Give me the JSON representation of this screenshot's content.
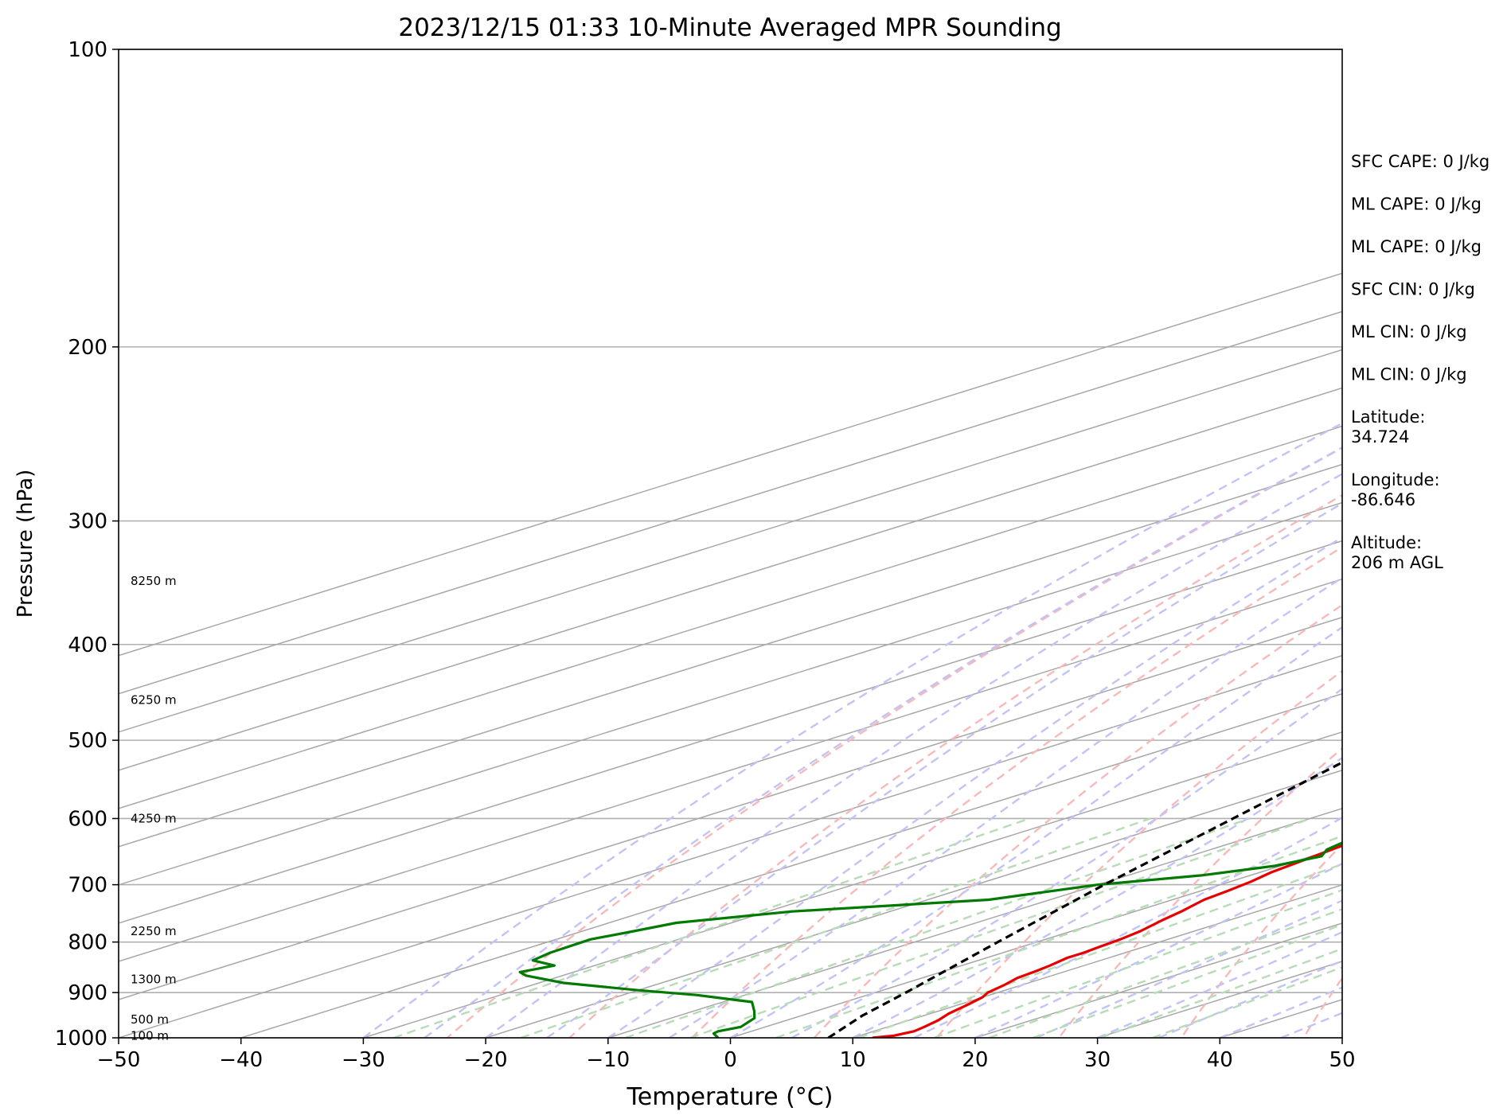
{
  "chart_data": {
    "type": "line",
    "chart_kind": "skew-T log-P",
    "title": "2023/12/15 01:33 10-Minute Averaged MPR Sounding",
    "xlabel": "Temperature (°C)",
    "ylabel": "Pressure (hPa)",
    "xlim": [
      -50,
      50
    ],
    "ylim": [
      1000,
      100
    ],
    "y_scale": "log",
    "x_ticks": [
      "−50",
      "−40",
      "−30",
      "−20",
      "−10",
      "0",
      "10",
      "20",
      "30",
      "40",
      "50"
    ],
    "y_ticks": [
      "100",
      "200",
      "300",
      "400",
      "500",
      "600",
      "700",
      "800",
      "900",
      "1000"
    ],
    "grid": "horizontal isobars plus skewed isotherms, dry adiabats, moist adiabats and mixing-ratio lines",
    "background_lines": {
      "isotherms": {
        "color": "#a8a8a8",
        "values": [
          -150,
          -140,
          -130,
          -120,
          -110,
          -100,
          -90,
          -80,
          -70,
          -60,
          -50,
          -40,
          -30,
          -20,
          -10,
          0,
          10,
          20,
          30,
          40,
          50
        ]
      },
      "dry_adiabats": {
        "color": "#f7b9b9",
        "theta_K": [
          250,
          260,
          270,
          280,
          290,
          300,
          310,
          320,
          330,
          340,
          350,
          360,
          370,
          380,
          390,
          400,
          410,
          420,
          430,
          440,
          450
        ]
      },
      "moist_adiabats": {
        "color": "#c3c3f6",
        "surface_temp_C": [
          -30,
          -25,
          -20,
          -15,
          -10,
          -5,
          0,
          5,
          10,
          15,
          20,
          25,
          30,
          35,
          40,
          45
        ]
      },
      "mixing_ratio": {
        "color": "#b8dbb8",
        "values_g_per_kg": [
          0.4,
          1,
          2,
          3,
          5,
          8,
          12,
          16,
          20,
          28,
          36
        ],
        "top_pressure": 600
      }
    },
    "height_labels": [
      "8250 m",
      "6250 m",
      "4250 m",
      "2250 m",
      "1300 m",
      "500 m",
      "100 m"
    ],
    "height_label_pressures": [
      345,
      455,
      600,
      780,
      873,
      958,
      995
    ],
    "series": [
      {
        "color": "#e60000",
        "points": [
          [
            1000,
            11.6
          ],
          [
            995,
            12.8
          ],
          [
            985,
            13.3
          ],
          [
            975,
            13.0
          ],
          [
            960,
            12.4
          ],
          [
            945,
            11.5
          ],
          [
            925,
            10.7
          ],
          [
            910,
            10.0
          ],
          [
            900,
            9.2
          ],
          [
            885,
            8.6
          ],
          [
            870,
            7.8
          ],
          [
            855,
            7.5
          ],
          [
            845,
            7.2
          ],
          [
            830,
            6.6
          ],
          [
            820,
            6.6
          ],
          [
            810,
            6.4
          ],
          [
            795,
            6.1
          ],
          [
            780,
            5.6
          ],
          [
            760,
            4.5
          ],
          [
            745,
            3.8
          ],
          [
            725,
            2.6
          ],
          [
            710,
            2.2
          ],
          [
            695,
            1.7
          ],
          [
            680,
            0.9
          ],
          [
            665,
            0.5
          ],
          [
            645,
            -0.1
          ],
          [
            625,
            -0.8
          ],
          [
            610,
            -1.3
          ],
          [
            590,
            -2.0
          ],
          [
            570,
            -2.9
          ],
          [
            555,
            -3.6
          ],
          [
            540,
            -4.1
          ],
          [
            520,
            -5.1
          ],
          [
            500,
            -5.7
          ],
          [
            480,
            -6.8
          ],
          [
            465,
            -7.8
          ],
          [
            450,
            -8.6
          ],
          [
            435,
            -9.7
          ],
          [
            420,
            -10.3
          ],
          [
            400,
            -11.2
          ],
          [
            380,
            -12.5
          ],
          [
            365,
            -13.7
          ],
          [
            350,
            -15.3
          ],
          [
            335,
            -16.9
          ],
          [
            320,
            -18.0
          ],
          [
            305,
            -19.0
          ],
          [
            290,
            -19.9
          ],
          [
            275,
            -21.0
          ],
          [
            262,
            -21.6
          ],
          [
            250,
            -21.8
          ]
        ]
      },
      {
        "color": "#007a00",
        "points": [
          [
            1000,
            -1.0
          ],
          [
            990,
            -2.5
          ],
          [
            985,
            -2.7
          ],
          [
            975,
            -2.0
          ],
          [
            955,
            -3.2
          ],
          [
            940,
            -5.0
          ],
          [
            920,
            -7.6
          ],
          [
            905,
            -14.0
          ],
          [
            895,
            -20.0
          ],
          [
            880,
            -28.0
          ],
          [
            865,
            -33.0
          ],
          [
            858,
            -34.4
          ],
          [
            845,
            -33.3
          ],
          [
            835,
            -36.4
          ],
          [
            820,
            -37.0
          ],
          [
            795,
            -37.2
          ],
          [
            780,
            -35.8
          ],
          [
            765,
            -34.5
          ],
          [
            745,
            -28.0
          ],
          [
            725,
            -15.0
          ],
          [
            700,
            -10.0
          ],
          [
            685,
            -4.0
          ],
          [
            670,
            -0.5
          ],
          [
            655,
            0.8
          ],
          [
            645,
            -0.5
          ],
          [
            635,
            -1.0
          ],
          [
            620,
            -1.5
          ],
          [
            600,
            -2.0
          ],
          [
            580,
            -3.0
          ],
          [
            565,
            -4.0
          ],
          [
            545,
            -4.8
          ],
          [
            525,
            -4.5
          ],
          [
            510,
            -4.9
          ],
          [
            500,
            -5.5
          ],
          [
            480,
            -8.0
          ],
          [
            465,
            -10.0
          ],
          [
            455,
            -10.0
          ],
          [
            440,
            -10.5
          ],
          [
            420,
            -11.0
          ],
          [
            400,
            -12.5
          ],
          [
            370,
            -15.0
          ],
          [
            365,
            -18.0
          ],
          [
            345,
            -19.5
          ],
          [
            335,
            -20.0
          ],
          [
            320,
            -21.5
          ],
          [
            312,
            -22.0
          ],
          [
            305,
            -19.0
          ],
          [
            300,
            -19.0
          ],
          [
            297,
            -31.0
          ],
          [
            296,
            -51.0
          ]
        ]
      },
      {
        "color": "#000000",
        "dashed": true,
        "points": [
          [
            1000,
            8.0
          ],
          [
            950,
            5.0
          ],
          [
            900,
            2.5
          ],
          [
            800,
            -3.2
          ],
          [
            700,
            -9.5
          ],
          [
            600,
            -16.3
          ],
          [
            500,
            -24.3
          ],
          [
            400,
            -33.0
          ],
          [
            330,
            -38.3
          ],
          [
            300,
            -41.5
          ],
          [
            270,
            -45.3
          ]
        ]
      }
    ]
  },
  "info_panel": {
    "lines": [
      "SFC CAPE: 0 J/kg",
      "ML CAPE: 0 J/kg",
      "ML CAPE: 0 J/kg",
      "SFC CIN: 0 J/kg",
      "ML CIN: 0 J/kg",
      "ML CIN: 0 J/kg",
      "Latitude:\n34.724",
      "Longitude:\n-86.646",
      "Altitude:\n206 m AGL"
    ]
  }
}
